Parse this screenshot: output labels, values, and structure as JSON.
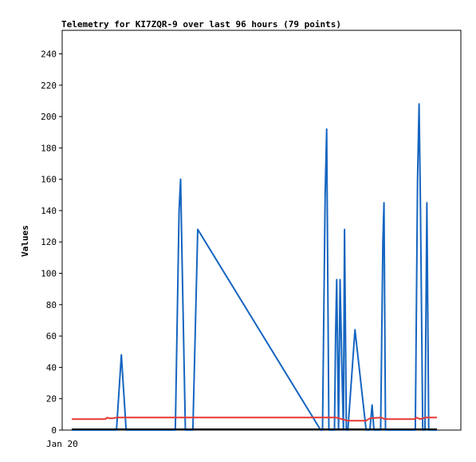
{
  "chart_data": {
    "type": "line",
    "title": "Telemetry for KI7ZQR-9 over last 96 hours (79 points)",
    "ylabel": "Values",
    "xlabel": "",
    "ylim": [
      0,
      255
    ],
    "yticks": [
      0,
      20,
      40,
      60,
      80,
      100,
      120,
      140,
      160,
      180,
      200,
      220,
      240
    ],
    "xtick_labels": [
      "Jan 20"
    ],
    "grid": false,
    "series": [
      {
        "color": "#1565c0",
        "points": [
          [
            0.0,
            0
          ],
          [
            0.1,
            0
          ],
          [
            0.12,
            0
          ],
          [
            0.133,
            48
          ],
          [
            0.146,
            0
          ],
          [
            0.278,
            0
          ],
          [
            0.288,
            140
          ],
          [
            0.292,
            160
          ],
          [
            0.296,
            110
          ],
          [
            0.305,
            0
          ],
          [
            0.325,
            0
          ],
          [
            0.338,
            128
          ],
          [
            0.668,
            0
          ],
          [
            0.673,
            0
          ],
          [
            0.68,
            150
          ],
          [
            0.684,
            192
          ],
          [
            0.69,
            0
          ],
          [
            0.705,
            0
          ],
          [
            0.708,
            60
          ],
          [
            0.711,
            96
          ],
          [
            0.716,
            0
          ],
          [
            0.72,
            96
          ],
          [
            0.725,
            40
          ],
          [
            0.729,
            0
          ],
          [
            0.732,
            128
          ],
          [
            0.737,
            0
          ],
          [
            0.741,
            0
          ],
          [
            0.76,
            64
          ],
          [
            0.79,
            0
          ],
          [
            0.8,
            0
          ],
          [
            0.806,
            16
          ],
          [
            0.811,
            0
          ],
          [
            0.829,
            0
          ],
          [
            0.835,
            120
          ],
          [
            0.838,
            145
          ],
          [
            0.842,
            0
          ],
          [
            0.922,
            0
          ],
          [
            0.928,
            160
          ],
          [
            0.932,
            208
          ],
          [
            0.936,
            140
          ],
          [
            0.942,
            0
          ],
          [
            0.948,
            0
          ],
          [
            0.953,
            145
          ],
          [
            0.958,
            0
          ],
          [
            0.98,
            0
          ]
        ]
      },
      {
        "color": "#e53935",
        "points": [
          [
            0.0,
            7
          ],
          [
            0.09,
            7
          ],
          [
            0.095,
            8
          ],
          [
            0.1,
            7.5
          ],
          [
            0.11,
            7.5
          ],
          [
            0.12,
            8
          ],
          [
            0.5,
            8
          ],
          [
            0.71,
            8
          ],
          [
            0.74,
            6
          ],
          [
            0.79,
            6
          ],
          [
            0.8,
            7.5
          ],
          [
            0.83,
            8
          ],
          [
            0.84,
            7
          ],
          [
            0.92,
            7
          ],
          [
            0.925,
            8
          ],
          [
            0.935,
            7
          ],
          [
            0.95,
            8
          ],
          [
            0.98,
            8
          ]
        ]
      }
    ]
  }
}
